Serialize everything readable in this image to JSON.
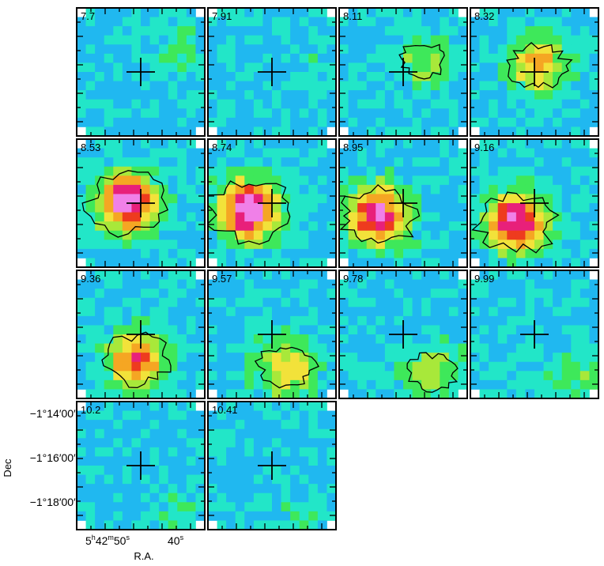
{
  "figure": {
    "type": "channel-map",
    "colormap": [
      "#3b6fe0",
      "#20b8f0",
      "#22e6c8",
      "#3ee85a",
      "#a8e83a",
      "#f2e23a",
      "#f5a623",
      "#ee3b1e",
      "#e8207a",
      "#f080e8"
    ],
    "axes": {
      "xlabel": "R.A.",
      "ylabel": "Dec",
      "x_ticks": [
        {
          "h": "5",
          "m": "42",
          "s": "50"
        },
        {
          "h": "",
          "m": "",
          "s": "40"
        }
      ],
      "y_ticks": [
        "−1°14′00″",
        "−1°16′00″",
        "−1°18′00″"
      ]
    },
    "panels": [
      {
        "label": "7.7",
        "level": 0.08
      },
      {
        "label": "7.91",
        "level": 0.06
      },
      {
        "label": "8.11",
        "level": 0.16
      },
      {
        "label": "8.32",
        "level": 0.3
      },
      {
        "label": "8.53",
        "level": 0.55
      },
      {
        "label": "8.74",
        "level": 0.56
      },
      {
        "label": "8.95",
        "level": 0.5
      },
      {
        "label": "9.16",
        "level": 0.52
      },
      {
        "label": "9.36",
        "level": 0.4
      },
      {
        "label": "9.57",
        "level": 0.28
      },
      {
        "label": "9.78",
        "level": 0.2
      },
      {
        "label": "9.99",
        "level": 0.12
      },
      {
        "label": "10.2",
        "level": 0.06
      },
      {
        "label": "10.41",
        "level": 0.05
      }
    ]
  }
}
